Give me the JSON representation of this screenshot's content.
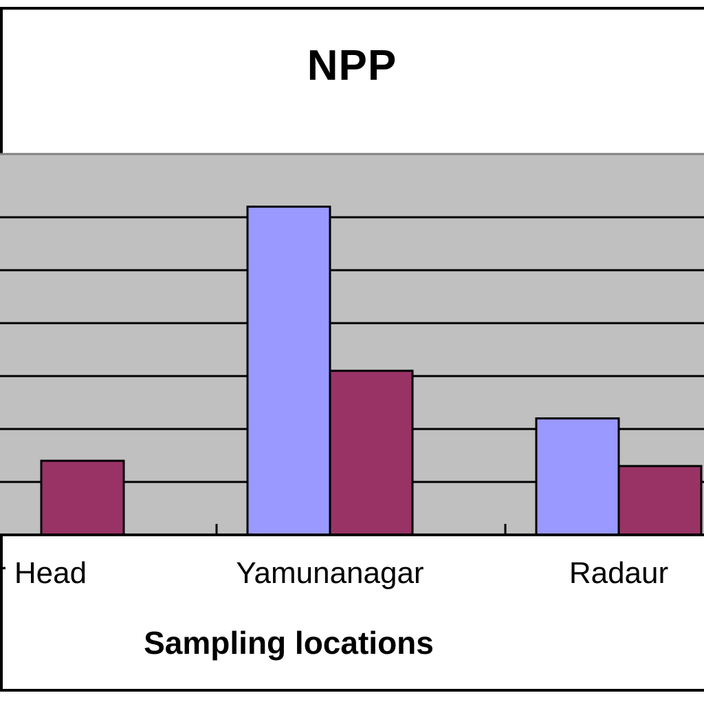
{
  "chart_data": {
    "type": "bar",
    "title": "NPP",
    "xlabel": "Sampling locations",
    "ylabel": "",
    "categories": [
      "r Head",
      "Yamunanagar",
      "Radaur"
    ],
    "series": [
      {
        "color": "#9999ff",
        "values": [
          0,
          6.2,
          2.2
        ]
      },
      {
        "color": "#993366",
        "values": [
          1.4,
          3.1,
          1.3
        ]
      }
    ],
    "ylim": [
      0,
      7
    ],
    "grid": true,
    "plot_background": "#c0c0c0"
  }
}
